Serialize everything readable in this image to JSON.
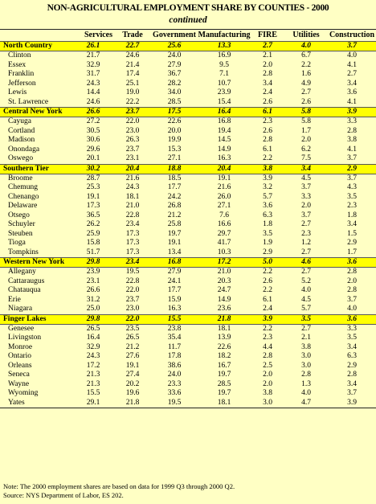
{
  "title": "NON-AGRICULTURAL EMPLOYMENT SHARE BY COUNTIES - 2000",
  "subtitle": "continued",
  "columns": [
    "",
    "Services",
    "Trade",
    "Government",
    "Manufacturing",
    "FIRE",
    "Utilities",
    "Construction"
  ],
  "sections": [
    {
      "name": "North Country",
      "values": [
        "26.1",
        "22.7",
        "25.6",
        "13.3",
        "2.7",
        "4.0",
        "3.7"
      ],
      "rows": [
        {
          "name": "Clinton",
          "values": [
            "21.7",
            "24.6",
            "24.0",
            "16.9",
            "2.1",
            "6.7",
            "4.0"
          ]
        },
        {
          "name": "Essex",
          "values": [
            "32.9",
            "21.4",
            "27.9",
            "9.5",
            "2.0",
            "2.2",
            "4.1"
          ]
        },
        {
          "name": "Franklin",
          "values": [
            "31.7",
            "17.4",
            "36.7",
            "7.1",
            "2.8",
            "1.6",
            "2.7"
          ]
        },
        {
          "name": "Jefferson",
          "values": [
            "24.3",
            "25.1",
            "28.2",
            "10.7",
            "3.4",
            "4.9",
            "3.4"
          ]
        },
        {
          "name": "Lewis",
          "values": [
            "14.4",
            "19.0",
            "34.0",
            "23.9",
            "2.4",
            "2.7",
            "3.6"
          ]
        },
        {
          "name": "St. Lawrence",
          "values": [
            "24.6",
            "22.2",
            "28.5",
            "15.4",
            "2.6",
            "2.6",
            "4.1"
          ]
        }
      ]
    },
    {
      "name": "Central New York",
      "values": [
        "26.6",
        "23.7",
        "17.5",
        "16.4",
        "6.1",
        "5.8",
        "3.9"
      ],
      "rows": [
        {
          "name": "Cayuga",
          "values": [
            "27.2",
            "22.0",
            "22.6",
            "16.8",
            "2.3",
            "5.8",
            "3.3"
          ]
        },
        {
          "name": "Cortland",
          "values": [
            "30.5",
            "23.0",
            "20.0",
            "19.4",
            "2.6",
            "1.7",
            "2.8"
          ]
        },
        {
          "name": "Madison",
          "values": [
            "30.6",
            "26.3",
            "19.9",
            "14.5",
            "2.8",
            "2.0",
            "3.8"
          ]
        },
        {
          "name": "Onondaga",
          "values": [
            "29.6",
            "23.7",
            "15.3",
            "14.9",
            "6.1",
            "6.2",
            "4.1"
          ]
        },
        {
          "name": "Oswego",
          "values": [
            "20.1",
            "23.1",
            "27.1",
            "16.3",
            "2.2",
            "7.5",
            "3.7"
          ]
        }
      ]
    },
    {
      "name": "Southern Tier",
      "values": [
        "30.2",
        "20.4",
        "18.8",
        "20.4",
        "3.8",
        "3.4",
        "2.9"
      ],
      "rows": [
        {
          "name": "Broome",
          "values": [
            "28.7",
            "21.6",
            "18.5",
            "19.1",
            "3.9",
            "4.5",
            "3.7"
          ]
        },
        {
          "name": "Chemung",
          "values": [
            "25.3",
            "24.3",
            "17.7",
            "21.6",
            "3.2",
            "3.7",
            "4.3"
          ]
        },
        {
          "name": "Chenango",
          "values": [
            "19.1",
            "18.1",
            "24.2",
            "26.0",
            "5.7",
            "3.3",
            "3.5"
          ]
        },
        {
          "name": "Delaware",
          "values": [
            "17.3",
            "21.0",
            "26.8",
            "27.1",
            "3.6",
            "2.0",
            "2.3"
          ]
        },
        {
          "name": "Otsego",
          "values": [
            "36.5",
            "22.8",
            "21.2",
            "7.6",
            "6.3",
            "3.7",
            "1.8"
          ]
        },
        {
          "name": "Schuyler",
          "values": [
            "26.2",
            "23.4",
            "25.8",
            "16.6",
            "1.8",
            "2.7",
            "3.4"
          ]
        },
        {
          "name": "Steuben",
          "values": [
            "25.9",
            "17.3",
            "19.7",
            "29.7",
            "3.5",
            "2.3",
            "1.5"
          ]
        },
        {
          "name": "Tioga",
          "values": [
            "15.8",
            "17.3",
            "19.1",
            "41.7",
            "1.9",
            "1.2",
            "2.9"
          ]
        },
        {
          "name": "Tompkins",
          "values": [
            "51.7",
            "17.3",
            "13.4",
            "10.3",
            "2.9",
            "2.7",
            "1.7"
          ]
        }
      ]
    },
    {
      "name": "Western New York",
      "values": [
        "29.8",
        "23.4",
        "16.8",
        "17.2",
        "5.0",
        "4.6",
        "3.6"
      ],
      "rows": [
        {
          "name": "Allegany",
          "values": [
            "23.9",
            "19.5",
            "27.9",
            "21.0",
            "2.2",
            "2.7",
            "2.8"
          ]
        },
        {
          "name": "Cattaraugus",
          "values": [
            "23.1",
            "22.8",
            "24.1",
            "20.3",
            "2.6",
            "5.2",
            "2.0"
          ]
        },
        {
          "name": "Chatauqua",
          "values": [
            "26.6",
            "22.0",
            "17.7",
            "24.7",
            "2.2",
            "4.0",
            "2.8"
          ]
        },
        {
          "name": "Erie",
          "values": [
            "31.2",
            "23.7",
            "15.9",
            "14.9",
            "6.1",
            "4.5",
            "3.7"
          ]
        },
        {
          "name": "Niagara",
          "values": [
            "25.0",
            "23.0",
            "16.3",
            "23.6",
            "2.4",
            "5.7",
            "4.0"
          ]
        }
      ]
    },
    {
      "name": "Finger Lakes",
      "values": [
        "29.8",
        "22.0",
        "15.5",
        "21.8",
        "3.9",
        "3.5",
        "3.6"
      ],
      "rows": [
        {
          "name": "Genesee",
          "values": [
            "26.5",
            "23.5",
            "23.8",
            "18.1",
            "2.2",
            "2.7",
            "3.3"
          ]
        },
        {
          "name": "Livingston",
          "values": [
            "16.4",
            "26.5",
            "35.4",
            "13.9",
            "2.3",
            "2.1",
            "3.5"
          ]
        },
        {
          "name": "Monroe",
          "values": [
            "32.9",
            "21.2",
            "11.7",
            "22.6",
            "4.4",
            "3.8",
            "3.4"
          ]
        },
        {
          "name": "Ontario",
          "values": [
            "24.3",
            "27.6",
            "17.8",
            "18.2",
            "2.8",
            "3.0",
            "6.3"
          ]
        },
        {
          "name": "Orleans",
          "values": [
            "17.2",
            "19.1",
            "38.6",
            "16.7",
            "2.5",
            "3.0",
            "2.9"
          ]
        },
        {
          "name": "Seneca",
          "values": [
            "21.3",
            "27.4",
            "24.0",
            "19.7",
            "2.0",
            "2.8",
            "2.8"
          ]
        },
        {
          "name": "Wayne",
          "values": [
            "21.3",
            "20.2",
            "23.3",
            "28.5",
            "2.0",
            "1.3",
            "3.4"
          ]
        },
        {
          "name": "Wyoming",
          "values": [
            "15.5",
            "19.6",
            "33.6",
            "19.7",
            "3.8",
            "4.0",
            "3.7"
          ]
        },
        {
          "name": "Yates",
          "values": [
            "29.1",
            "21.8",
            "19.5",
            "18.1",
            "3.0",
            "4.7",
            "3.9"
          ]
        }
      ]
    }
  ],
  "notes": [
    "Note: The 2000 employment shares are based on data for 1999 Q3 through 2000 Q2.",
    "Source: NYS Department of Labor, ES 202."
  ]
}
